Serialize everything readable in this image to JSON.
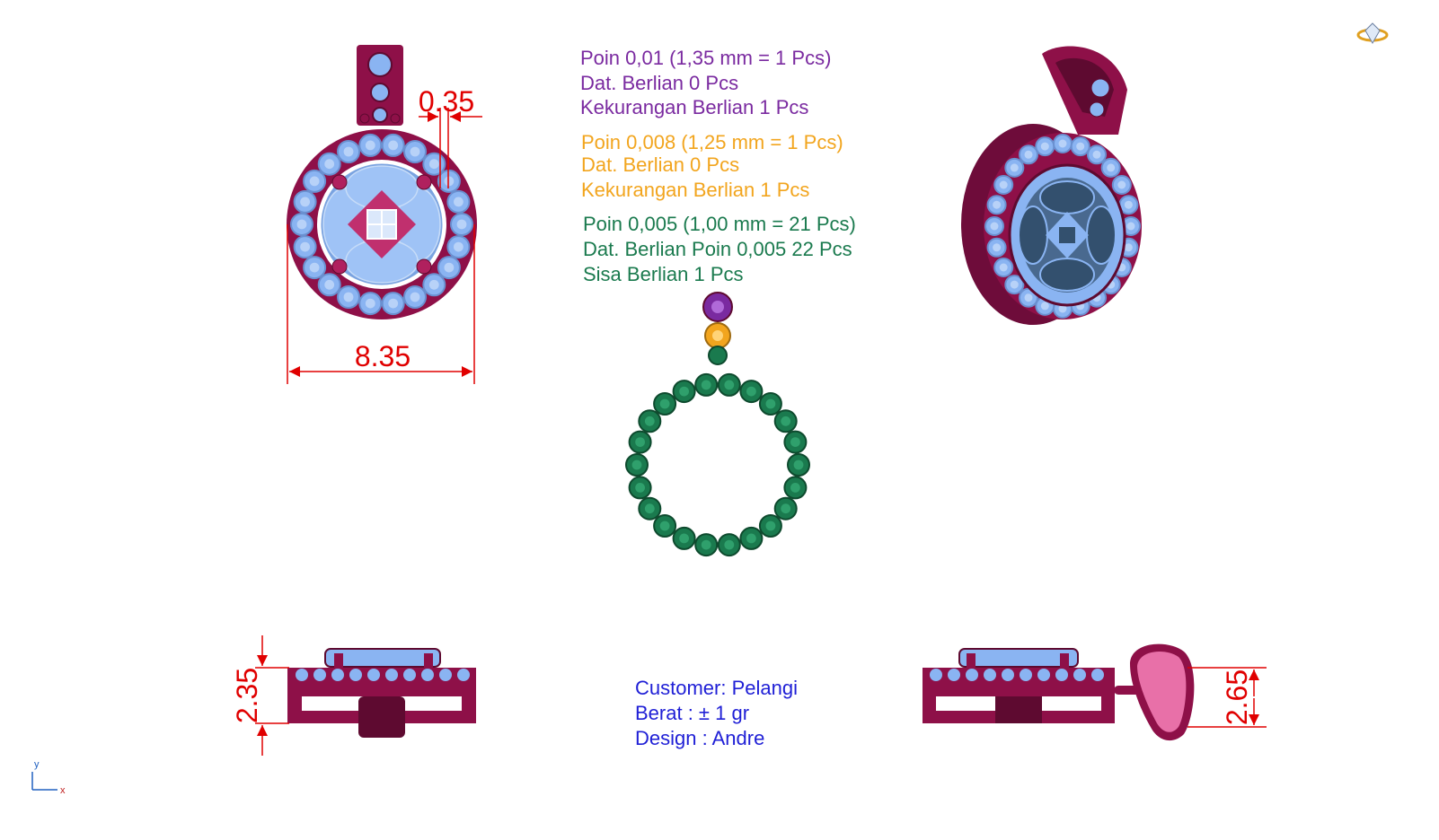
{
  "stones": {
    "group1": {
      "poin": "Poin  0,01 (1,35 mm = 1 Pcs)",
      "dat": "Dat. Berlian 0 Pcs",
      "note": "Kekurangan Berlian 1 Pcs"
    },
    "group2": {
      "poin": "Poin  0,008 (1,25 mm = 1 Pcs)",
      "dat": "Dat. Berlian 0 Pcs",
      "note": "Kekurangan Berlian 1 Pcs"
    },
    "group3": {
      "poin": "Poin  0,005 (1,00 mm = 21 Pcs)",
      "dat": "Dat. Berlian Poin  0,005 22 Pcs",
      "note": "Sisa Berlian 1 Pcs"
    }
  },
  "dimensions": {
    "width": "8.35",
    "gap": "0.35",
    "height_side": "2.35",
    "height_bail": "2.65"
  },
  "info": {
    "customer": "Customer: Pelangi",
    "weight": "Berat : ± 1 gr",
    "design": "Design : Andre"
  },
  "axis": {
    "y": "y",
    "x": "x"
  },
  "colors": {
    "metal": "#8e1048",
    "metal_dark": "#5e0a30",
    "stone": "#8ab4f2",
    "purple": "#7a2aa0",
    "orange": "#f2a51e",
    "green": "#1a7a4e",
    "dim": "#e00000",
    "info": "#1f1fd6",
    "bail_inner": "#e870a8"
  },
  "icons": [
    "diamond-ring-logo-icon"
  ]
}
